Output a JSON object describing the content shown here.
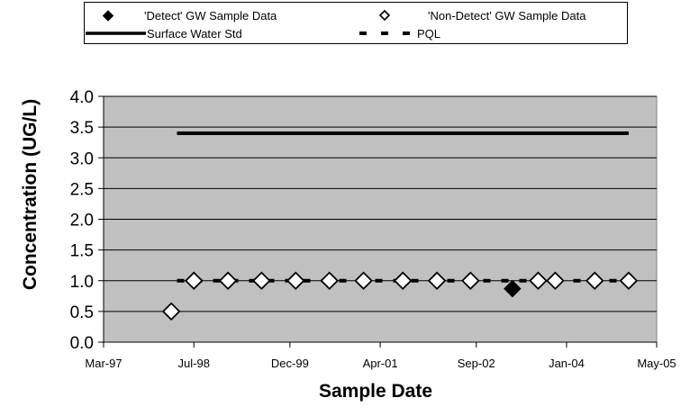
{
  "chart_data": {
    "type": "scatter",
    "title": "",
    "xlabel": "Sample Date",
    "ylabel": "Concentration (UG/L)",
    "ylim": [
      0.0,
      4.0
    ],
    "yticks": [
      "0.0",
      "0.5",
      "1.0",
      "1.5",
      "2.0",
      "2.5",
      "3.0",
      "3.5",
      "4.0"
    ],
    "xlim": [
      "1997-03-01",
      "2005-05-01"
    ],
    "xticks": [
      {
        "date": "1997-03-01",
        "label": "Mar-97"
      },
      {
        "date": "1998-07-01",
        "label": "Jul-98"
      },
      {
        "date": "1999-12-01",
        "label": "Dec-99"
      },
      {
        "date": "2001-04-01",
        "label": "Apr-01"
      },
      {
        "date": "2002-09-01",
        "label": "Sep-02"
      },
      {
        "date": "2004-01-01",
        "label": "Jan-04"
      },
      {
        "date": "2005-05-01",
        "label": "May-05"
      }
    ],
    "grid": true,
    "background_color": "#C0C0C0",
    "legend_position": "top",
    "series": [
      {
        "name": "'Detect' GW Sample Data",
        "marker": "filled-diamond",
        "color": "#000000",
        "points": [
          {
            "x": "2003-03-15",
            "y": 0.87
          }
        ]
      },
      {
        "name": "'Non-Detect' GW Sample Data",
        "marker": "open-diamond",
        "color": "#000000",
        "points": [
          {
            "x": "1998-03-01",
            "y": 0.5
          },
          {
            "x": "1998-07-01",
            "y": 1.0
          },
          {
            "x": "1999-01-01",
            "y": 1.0
          },
          {
            "x": "1999-07-01",
            "y": 1.0
          },
          {
            "x": "2000-01-01",
            "y": 1.0
          },
          {
            "x": "2000-07-01",
            "y": 1.0
          },
          {
            "x": "2001-01-01",
            "y": 1.0
          },
          {
            "x": "2001-08-01",
            "y": 1.0
          },
          {
            "x": "2002-02-01",
            "y": 1.0
          },
          {
            "x": "2002-08-01",
            "y": 1.0
          },
          {
            "x": "2003-08-01",
            "y": 1.0
          },
          {
            "x": "2003-11-01",
            "y": 1.0
          },
          {
            "x": "2004-06-01",
            "y": 1.0
          },
          {
            "x": "2004-12-01",
            "y": 1.0
          }
        ]
      },
      {
        "name": "Surface Water Std",
        "style": "solid-line",
        "color": "#000000",
        "points": [
          {
            "x": "1998-04-01",
            "y": 3.4
          },
          {
            "x": "2004-12-01",
            "y": 3.4
          }
        ]
      },
      {
        "name": "PQL",
        "style": "dashed-line",
        "color": "#000000",
        "points": [
          {
            "x": "1998-04-01",
            "y": 1.0
          },
          {
            "x": "2004-12-01",
            "y": 1.0
          }
        ]
      }
    ]
  }
}
